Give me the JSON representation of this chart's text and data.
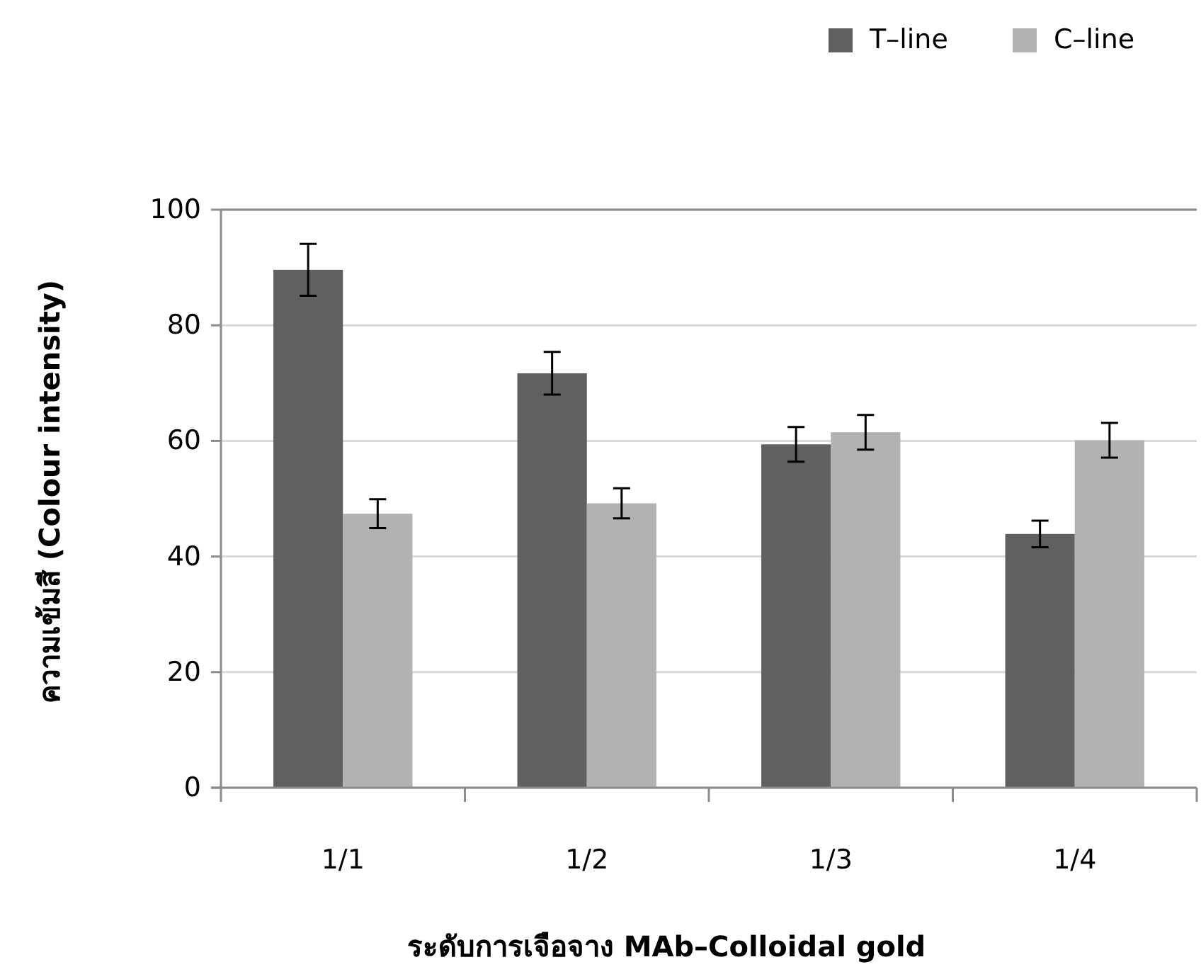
{
  "chart_data": {
    "type": "bar",
    "xlabel": "ระดับการเจือจาง MAb–Colloidal gold",
    "ylabel": "ความเข้มสี (Colour intensity)",
    "categories": [
      "1/1",
      "1/2",
      "1/3",
      "1/4"
    ],
    "series": [
      {
        "name": "T–line",
        "color": "#606060",
        "values": [
          89.6,
          71.7,
          59.4,
          43.9
        ],
        "errors": [
          4.5,
          3.7,
          3.0,
          2.3
        ]
      },
      {
        "name": "C–line",
        "color": "#b2b2b2",
        "values": [
          47.4,
          49.2,
          61.5,
          60.1
        ],
        "errors": [
          2.5,
          2.6,
          3.0,
          3.0
        ]
      }
    ],
    "ylim": [
      0,
      100
    ],
    "yticks": [
      0,
      20,
      40,
      60,
      80,
      100
    ],
    "grid": "y",
    "legend": "top right"
  }
}
